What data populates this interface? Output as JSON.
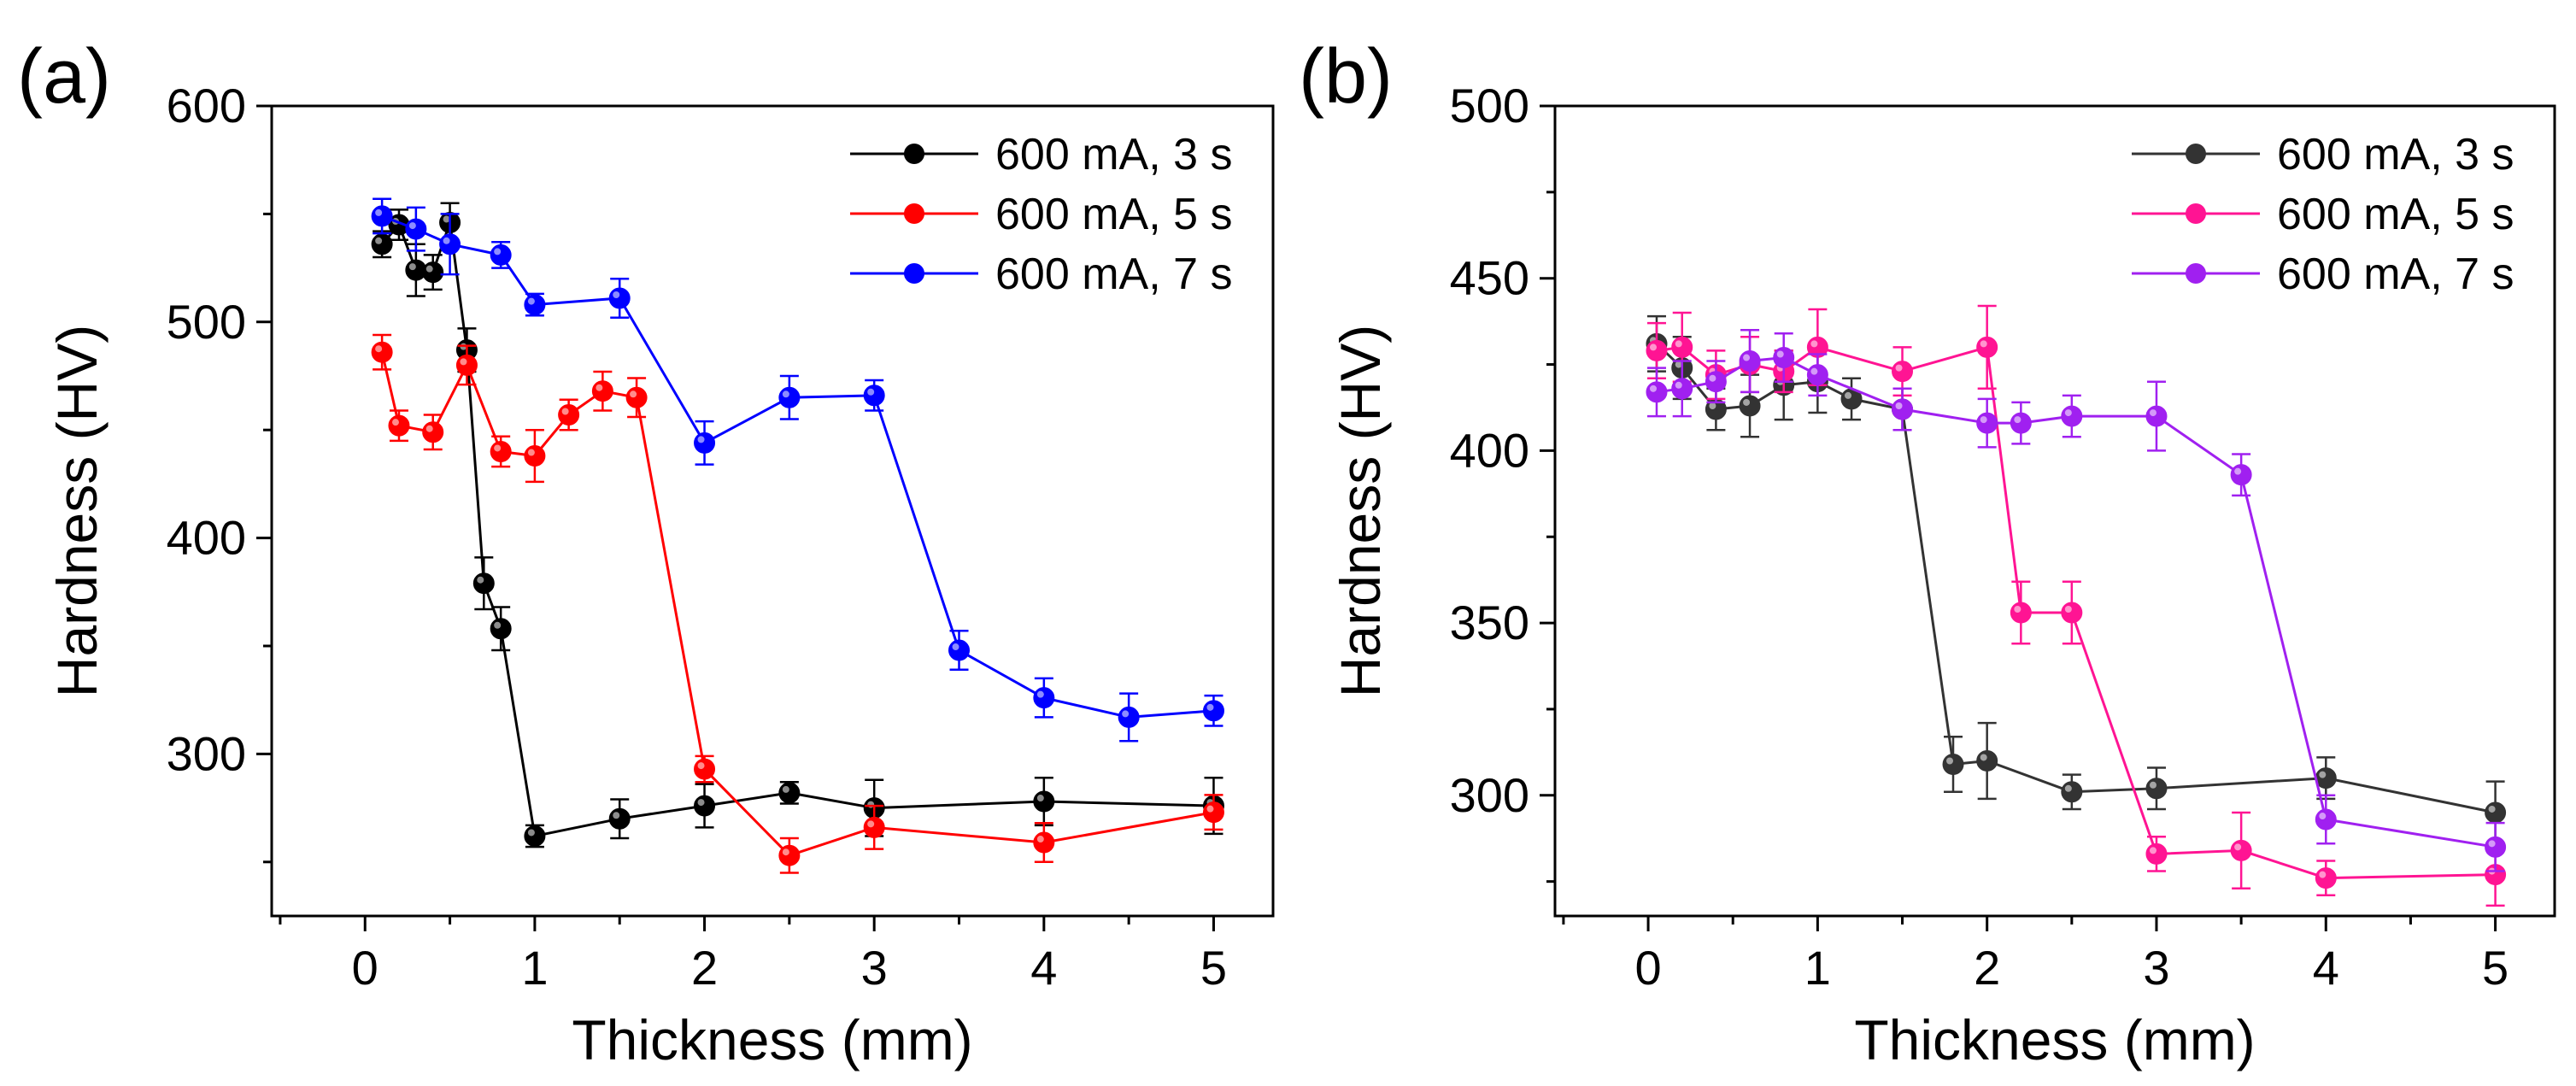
{
  "chart_data": [
    {
      "type": "line",
      "panel_label": "(a)",
      "xlabel": "Thickness (mm)",
      "ylabel": "Hardness (HV)",
      "xlim": [
        -0.55,
        5.35
      ],
      "ylim": [
        225,
        600
      ],
      "xticks": [
        0,
        1,
        2,
        3,
        4,
        5
      ],
      "yticks": [
        300,
        400,
        500,
        600
      ],
      "legend_position": "top-right",
      "series": [
        {
          "name": "600 mA, 3 s",
          "color": "#000000",
          "x": [
            0.1,
            0.2,
            0.3,
            0.4,
            0.5,
            0.6,
            0.7,
            0.8,
            1.0,
            1.5,
            2.0,
            2.5,
            3.0,
            4.0,
            5.0
          ],
          "y": [
            536,
            545,
            524,
            523,
            546,
            487,
            379,
            358,
            262,
            270,
            276,
            282,
            275,
            278,
            276
          ],
          "err": [
            6,
            7,
            12,
            8,
            9,
            10,
            12,
            10,
            5,
            9,
            10,
            5,
            13,
            11,
            13
          ]
        },
        {
          "name": "600 mA, 5 s",
          "color": "#ff0000",
          "x": [
            0.1,
            0.2,
            0.4,
            0.6,
            0.8,
            1.0,
            1.2,
            1.4,
            1.6,
            2.0,
            2.5,
            3.0,
            4.0,
            5.0
          ],
          "y": [
            486,
            452,
            449,
            480,
            440,
            438,
            457,
            468,
            465,
            293,
            253,
            266,
            259,
            273
          ],
          "err": [
            8,
            7,
            8,
            9,
            7,
            12,
            7,
            9,
            9,
            6,
            8,
            10,
            9,
            8
          ]
        },
        {
          "name": "600 mA, 7 s",
          "color": "#0000ff",
          "x": [
            0.1,
            0.3,
            0.5,
            0.8,
            1.0,
            1.5,
            2.0,
            2.5,
            3.0,
            3.5,
            4.0,
            4.5,
            5.0
          ],
          "y": [
            549,
            543,
            536,
            531,
            508,
            511,
            444,
            465,
            466,
            348,
            326,
            317,
            320
          ],
          "err": [
            8,
            10,
            14,
            6,
            5,
            9,
            10,
            10,
            7,
            9,
            9,
            11,
            7
          ]
        }
      ]
    },
    {
      "type": "line",
      "panel_label": "(b)",
      "xlabel": "Thickness (mm)",
      "ylabel": "Hardness (HV)",
      "xlim": [
        -0.55,
        5.35
      ],
      "ylim": [
        265,
        500
      ],
      "xticks": [
        0,
        1,
        2,
        3,
        4,
        5
      ],
      "yticks": [
        300,
        350,
        400,
        450,
        500
      ],
      "legend_position": "top-right",
      "series": [
        {
          "name": "600 mA, 3 s",
          "color": "#333333",
          "x": [
            0.05,
            0.2,
            0.4,
            0.6,
            0.8,
            1.0,
            1.2,
            1.5,
            1.8,
            2.0,
            2.5,
            3.0,
            4.0,
            5.0
          ],
          "y": [
            431,
            424,
            412,
            413,
            419,
            420,
            415,
            412,
            309,
            310,
            301,
            302,
            305,
            295
          ],
          "err": [
            8,
            9,
            6,
            9,
            10,
            9,
            6,
            6,
            8,
            11,
            5,
            6,
            6,
            9
          ]
        },
        {
          "name": "600 mA, 5 s",
          "color": "#ff1493",
          "x": [
            0.05,
            0.2,
            0.4,
            0.6,
            0.8,
            1.0,
            1.5,
            2.0,
            2.2,
            2.5,
            3.0,
            3.5,
            4.0,
            5.0
          ],
          "y": [
            429,
            430,
            422,
            425,
            423,
            430,
            423,
            430,
            353,
            353,
            283,
            284,
            276,
            277
          ],
          "err": [
            8,
            10,
            7,
            8,
            6,
            11,
            7,
            12,
            9,
            9,
            5,
            11,
            5,
            9
          ]
        },
        {
          "name": "600 mA, 7 s",
          "color": "#a020f0",
          "x": [
            0.05,
            0.2,
            0.4,
            0.6,
            0.8,
            1.0,
            1.5,
            2.0,
            2.2,
            2.5,
            3.0,
            3.5,
            4.0,
            5.0
          ],
          "y": [
            417,
            418,
            420,
            426,
            427,
            422,
            412,
            408,
            408,
            410,
            410,
            393,
            293,
            285
          ],
          "err": [
            7,
            8,
            6,
            9,
            7,
            6,
            6,
            7,
            6,
            6,
            10,
            6,
            7,
            7
          ]
        }
      ]
    }
  ]
}
